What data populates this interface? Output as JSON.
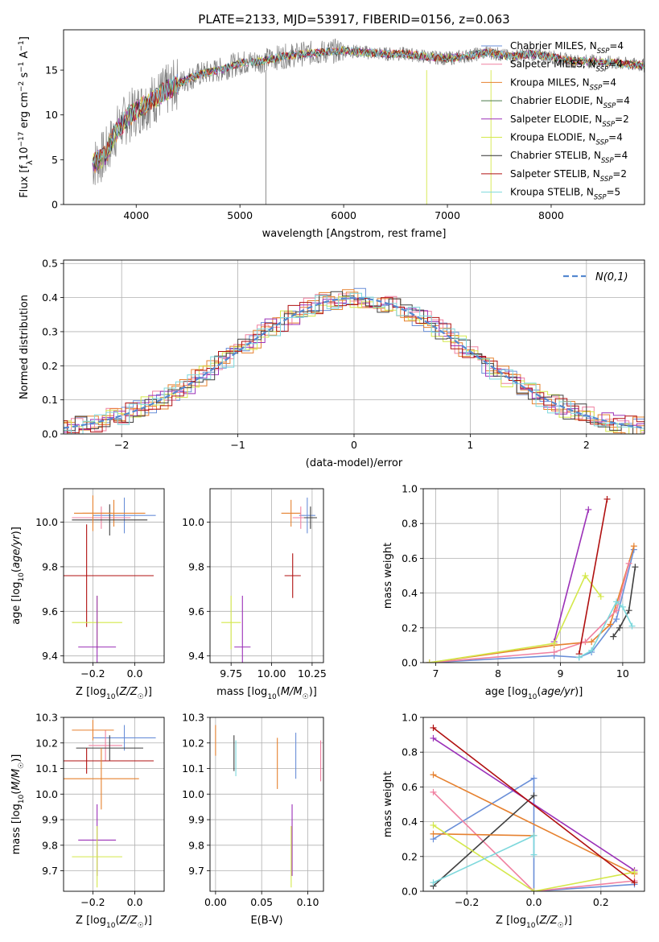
{
  "colors": [
    "#6a8fd8",
    "#e6812f",
    "#f080a0",
    "#e6812f",
    "#9b30b8",
    "#d4e84a",
    "#404040",
    "#b01010",
    "#7dd8dc"
  ],
  "spec_colors": [
    "#6a8fd8",
    "#f080a0",
    "#e6812f",
    "#4a7a4a",
    "#9b30b8",
    "#d4e84a",
    "#303030",
    "#b01010",
    "#7dd8dc"
  ],
  "chart_data": [
    {
      "id": "spectrum",
      "type": "line",
      "title": "PLATE=2133, MJD=53917, FIBERID=0156, z=0.063",
      "xlabel": "wavelength [Angstrom, rest frame]",
      "ylabel": "Flux [f_λ10^-17 erg cm^-2 s^-1 A^-1]",
      "xlim": [
        3300,
        8900
      ],
      "ylim": [
        0,
        19.5
      ],
      "xticks": [
        4000,
        5000,
        6000,
        7000,
        8000
      ],
      "yticks": [
        0,
        5,
        10,
        15
      ],
      "legend_position": "top-right",
      "legend": [
        {
          "base": "Chabrier MILES, N",
          "sub": "SSP",
          "tail": "=4"
        },
        {
          "base": "Salpeter MILES, N",
          "sub": "SSP",
          "tail": "=4"
        },
        {
          "base": "Kroupa MILES, N",
          "sub": "SSP",
          "tail": "=4"
        },
        {
          "base": "Chabrier ELODIE, N",
          "sub": "SSP",
          "tail": "=4"
        },
        {
          "base": "Salpeter ELODIE, N",
          "sub": "SSP",
          "tail": "=2"
        },
        {
          "base": "Kroupa ELODIE, N",
          "sub": "SSP",
          "tail": "=4"
        },
        {
          "base": "Chabrier STELIB, N",
          "sub": "SSP",
          "tail": "=4"
        },
        {
          "base": "Salpeter STELIB, N",
          "sub": "SSP",
          "tail": "=2"
        },
        {
          "base": "Kroupa STELIB, N",
          "sub": "SSP",
          "tail": "=5"
        }
      ],
      "continuum": [
        [
          3580,
          4.5
        ],
        [
          3700,
          5.5
        ],
        [
          3800,
          8.0
        ],
        [
          3900,
          9.5
        ],
        [
          4000,
          10.5
        ],
        [
          4200,
          12.0
        ],
        [
          4400,
          13.5
        ],
        [
          4600,
          14.5
        ],
        [
          4800,
          15.0
        ],
        [
          5000,
          15.8
        ],
        [
          5200,
          16.0
        ],
        [
          5400,
          16.5
        ],
        [
          5600,
          16.8
        ],
        [
          5800,
          17.0
        ],
        [
          6000,
          17.2
        ],
        [
          6200,
          17.0
        ],
        [
          6400,
          16.8
        ],
        [
          6600,
          16.8
        ],
        [
          6800,
          16.5
        ],
        [
          7000,
          16.3
        ],
        [
          7200,
          16.6
        ],
        [
          7400,
          17.0
        ],
        [
          7600,
          16.5
        ],
        [
          7800,
          16.8
        ],
        [
          8000,
          16.5
        ],
        [
          8200,
          16.0
        ],
        [
          8400,
          16.0
        ],
        [
          8600,
          15.8
        ],
        [
          8900,
          15.5
        ]
      ]
    },
    {
      "id": "residuals",
      "type": "histogram",
      "xlabel": "(data-model)/error",
      "ylabel": "Normed distribution",
      "xlim": [
        -2.5,
        2.5
      ],
      "ylim": [
        0,
        0.51
      ],
      "xticks": [
        -2,
        -1,
        0,
        1,
        2
      ],
      "yticks": [
        0.0,
        0.1,
        0.2,
        0.3,
        0.4,
        0.5
      ],
      "legend_label": "N(0,1)",
      "legend_position": "top-right",
      "gaussian": {
        "mu": 0,
        "sigma": 1
      }
    },
    {
      "id": "age-vs-Z",
      "type": "scatter",
      "xlabel": "Z [log10(Z/Z☉)]",
      "ylabel": "age [log10(age/yr)]",
      "xlim": [
        -0.34,
        0.14
      ],
      "ylim": [
        9.37,
        10.15
      ],
      "xticks": [
        -0.2,
        0.0
      ],
      "yticks": [
        9.4,
        9.6,
        9.8,
        10.0
      ],
      "points": [
        {
          "x": -0.05,
          "y": 10.03,
          "xerr": 0.15,
          "yerr": 0.08,
          "c": 0
        },
        {
          "x": -0.1,
          "y": 10.04,
          "xerr": 0.15,
          "yerr": 0.06,
          "c": 1
        },
        {
          "x": -0.16,
          "y": 10.02,
          "xerr": 0.14,
          "yerr": 0.05,
          "c": 2
        },
        {
          "x": -0.12,
          "y": 10.01,
          "xerr": 0.18,
          "yerr": 0.07,
          "c": 6
        },
        {
          "x": -0.2,
          "y": 10.04,
          "xerr": 0.09,
          "yerr": 0.08,
          "c": 3
        },
        {
          "x": -0.23,
          "y": 9.76,
          "xerr": 0.32,
          "yerr": 0.23,
          "c": 7
        },
        {
          "x": -0.18,
          "y": 9.55,
          "xerr": 0.12,
          "yerr": 0.12,
          "c": 5
        },
        {
          "x": -0.18,
          "y": 9.44,
          "xerr": 0.09,
          "yerr": 0.23,
          "c": 4
        }
      ]
    },
    {
      "id": "age-vs-mass",
      "type": "scatter",
      "xlabel": "mass [log10(M/M☉)]",
      "ylabel": "",
      "xlim": [
        9.62,
        10.32
      ],
      "ylim": [
        9.37,
        10.15
      ],
      "xticks": [
        9.75,
        10.0,
        10.25
      ],
      "yticks": [
        9.4,
        9.6,
        9.8,
        10.0
      ],
      "points": [
        {
          "x": 10.22,
          "y": 10.03,
          "xerr": 0.05,
          "yerr": 0.08,
          "c": 0
        },
        {
          "x": 10.12,
          "y": 10.04,
          "xerr": 0.06,
          "yerr": 0.06,
          "c": 1
        },
        {
          "x": 10.18,
          "y": 10.02,
          "xerr": 0.05,
          "yerr": 0.05,
          "c": 2
        },
        {
          "x": 10.24,
          "y": 10.02,
          "xerr": 0.04,
          "yerr": 0.05,
          "c": 6
        },
        {
          "x": 10.13,
          "y": 9.76,
          "xerr": 0.05,
          "yerr": 0.1,
          "c": 7
        },
        {
          "x": 9.75,
          "y": 9.55,
          "xerr": 0.06,
          "yerr": 0.12,
          "c": 5
        },
        {
          "x": 9.82,
          "y": 9.44,
          "xerr": 0.05,
          "yerr": 0.23,
          "c": 4
        }
      ]
    },
    {
      "id": "weight-vs-age",
      "type": "line",
      "xlabel": "age [log10(age/yr)]",
      "ylabel": "mass weight",
      "xlim": [
        6.8,
        10.35
      ],
      "ylim": [
        0,
        1.0
      ],
      "xticks": [
        7,
        8,
        9,
        10
      ],
      "yticks": [
        0.0,
        0.2,
        0.4,
        0.6,
        0.8,
        1.0
      ],
      "series": [
        {
          "c": 0,
          "x": [
            6.9,
            8.9,
            9.3,
            9.5,
            9.9,
            10.18
          ],
          "y": [
            0.0,
            0.04,
            0.03,
            0.06,
            0.25,
            0.65
          ]
        },
        {
          "c": 1,
          "x": [
            6.9,
            8.9,
            9.5,
            9.8,
            10.18
          ],
          "y": [
            0.0,
            0.1,
            0.12,
            0.22,
            0.67
          ]
        },
        {
          "c": 2,
          "x": [
            6.9,
            8.9,
            9.4,
            9.9,
            10.1
          ],
          "y": [
            0.0,
            0.06,
            0.12,
            0.3,
            0.57
          ]
        },
        {
          "c": 6,
          "x": [
            9.85,
            9.95,
            10.1,
            10.2
          ],
          "y": [
            0.15,
            0.2,
            0.3,
            0.55
          ]
        },
        {
          "c": 4,
          "x": [
            8.9,
            9.45
          ],
          "y": [
            0.12,
            0.88
          ]
        },
        {
          "c": 5,
          "x": [
            6.9,
            8.9,
            9.4,
            9.65
          ],
          "y": [
            0.0,
            0.11,
            0.5,
            0.38
          ]
        },
        {
          "c": 7,
          "x": [
            9.3,
            9.75
          ],
          "y": [
            0.05,
            0.94
          ]
        },
        {
          "c": 8,
          "x": [
            9.3,
            9.5,
            9.9,
            10.0,
            10.15
          ],
          "y": [
            0.03,
            0.07,
            0.35,
            0.32,
            0.21
          ]
        }
      ]
    },
    {
      "id": "mass-vs-Z",
      "type": "scatter",
      "xlabel": "Z [log10(Z/Z☉)]",
      "ylabel": "mass [log10(M/M☉)]",
      "xlim": [
        -0.34,
        0.14
      ],
      "ylim": [
        9.62,
        10.3
      ],
      "xticks": [
        -0.2,
        0.0
      ],
      "yticks": [
        9.7,
        9.8,
        9.9,
        10.0,
        10.1,
        10.2,
        10.3
      ],
      "points": [
        {
          "x": -0.05,
          "y": 10.22,
          "xerr": 0.15,
          "yerr": 0.05,
          "c": 0
        },
        {
          "x": -0.14,
          "y": 10.19,
          "xerr": 0.08,
          "yerr": 0.06,
          "c": 2
        },
        {
          "x": -0.12,
          "y": 10.18,
          "xerr": 0.16,
          "yerr": 0.05,
          "c": 6
        },
        {
          "x": -0.2,
          "y": 10.25,
          "xerr": 0.1,
          "yerr": 0.04,
          "c": 3
        },
        {
          "x": -0.23,
          "y": 10.13,
          "xerr": 0.32,
          "yerr": 0.05,
          "c": 7
        },
        {
          "x": -0.16,
          "y": 10.06,
          "xerr": 0.18,
          "yerr": 0.12,
          "c": 1
        },
        {
          "x": -0.18,
          "y": 9.82,
          "xerr": 0.09,
          "yerr": 0.14,
          "c": 4
        },
        {
          "x": -0.18,
          "y": 9.755,
          "xerr": 0.12,
          "yerr": 0.12,
          "c": 5
        }
      ]
    },
    {
      "id": "mass-vs-ebv",
      "type": "scatter",
      "xlabel": "E(B-V)",
      "ylabel": "",
      "xlim": [
        -0.006,
        0.117
      ],
      "ylim": [
        9.62,
        10.3
      ],
      "xticks": [
        0.0,
        0.05,
        0.1
      ],
      "yticks": [
        9.7,
        9.8,
        9.9,
        10.0,
        10.1,
        10.2,
        10.3
      ],
      "points": [
        {
          "x": 0.0,
          "y": 10.21,
          "xerr": 0,
          "yerr": 0.06,
          "c": 3
        },
        {
          "x": 0.02,
          "y": 10.16,
          "xerr": 0,
          "yerr": 0.07,
          "c": 6
        },
        {
          "x": 0.022,
          "y": 10.14,
          "xerr": 0,
          "yerr": 0.07,
          "c": 8
        },
        {
          "x": 0.067,
          "y": 10.12,
          "xerr": 0,
          "yerr": 0.1,
          "c": 1
        },
        {
          "x": 0.087,
          "y": 10.15,
          "xerr": 0,
          "yerr": 0.09,
          "c": 0
        },
        {
          "x": 0.114,
          "y": 10.13,
          "xerr": 0,
          "yerr": 0.08,
          "c": 2
        },
        {
          "x": 0.083,
          "y": 9.82,
          "xerr": 0,
          "yerr": 0.14,
          "c": 4
        },
        {
          "x": 0.082,
          "y": 9.755,
          "xerr": 0,
          "yerr": 0.12,
          "c": 5
        }
      ]
    },
    {
      "id": "weight-vs-Z",
      "type": "line",
      "xlabel": "Z [log10(Z/Z☉)]",
      "ylabel": "mass weight",
      "xlim": [
        -0.33,
        0.33
      ],
      "ylim": [
        0,
        1.0
      ],
      "xticks": [
        -0.2,
        0.0,
        0.2
      ],
      "yticks": [
        0.0,
        0.2,
        0.4,
        0.6,
        0.8,
        1.0
      ],
      "series": [
        {
          "c": 0,
          "x": [
            -0.3,
            0.0,
            0.0,
            0.3
          ],
          "y": [
            0.3,
            0.65,
            0.0,
            0.04
          ]
        },
        {
          "c": 1,
          "x": [
            -0.3,
            0.3
          ],
          "y": [
            0.67,
            0.1
          ]
        },
        {
          "c": 2,
          "x": [
            -0.3,
            0.0,
            0.3
          ],
          "y": [
            0.57,
            0.0,
            0.06
          ]
        },
        {
          "c": 6,
          "x": [
            -0.3,
            0.0
          ],
          "y": [
            0.03,
            0.55
          ]
        },
        {
          "c": 3,
          "x": [
            -0.3,
            0.0
          ],
          "y": [
            0.33,
            0.32
          ]
        },
        {
          "c": 4,
          "x": [
            -0.3,
            0.3
          ],
          "y": [
            0.88,
            0.12
          ]
        },
        {
          "c": 5,
          "x": [
            -0.3,
            0.0,
            0.3
          ],
          "y": [
            0.38,
            0.0,
            0.11
          ]
        },
        {
          "c": 7,
          "x": [
            -0.3,
            0.3
          ],
          "y": [
            0.94,
            0.05
          ]
        },
        {
          "c": 8,
          "x": [
            -0.3,
            0.0,
            0.0
          ],
          "y": [
            0.05,
            0.32,
            0.21
          ]
        }
      ]
    }
  ]
}
